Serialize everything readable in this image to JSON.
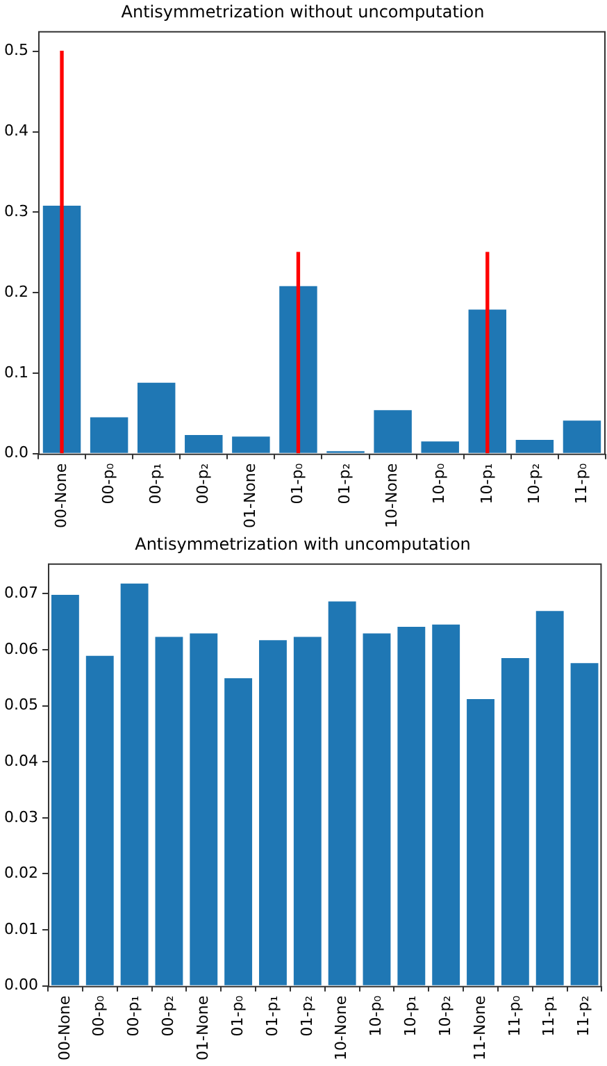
{
  "chart_data": [
    {
      "type": "bar",
      "title": "Antisymmetrization without uncomputation",
      "categories": [
        "00-None",
        "00-p₀",
        "00-p₁",
        "00-p₂",
        "01-None",
        "01-p₀",
        "01-p₂",
        "10-None",
        "10-p₀",
        "10-p₁",
        "10-p₂",
        "11-p₀"
      ],
      "series": [
        {
          "color": "#1f77b4",
          "values": [
            0.308,
            0.045,
            0.088,
            0.023,
            0.021,
            0.208,
            0.003,
            0.054,
            0.015,
            0.179,
            0.017,
            0.041
          ]
        },
        {
          "color": "#ff0000",
          "values": [
            0.5,
            null,
            null,
            null,
            null,
            0.25,
            null,
            null,
            null,
            0.25,
            null,
            null
          ]
        }
      ],
      "ylim": [
        0,
        0.525
      ],
      "yticks": [
        {
          "value": 0,
          "label": "0.0"
        },
        0.1,
        0.2,
        0.3,
        0.4,
        0.5
      ],
      "grid": false,
      "legend": false
    },
    {
      "type": "bar",
      "title": "Antisymmetrization with uncomputation",
      "categories": [
        "00-None",
        "00-p₀",
        "00-p₁",
        "00-p₂",
        "01-None",
        "01-p₀",
        "01-p₁",
        "01-p₂",
        "10-None",
        "10-p₀",
        "10-p₁",
        "10-p₂",
        "11-None",
        "11-p₀",
        "11-p₁",
        "11-p₂"
      ],
      "series": [
        {
          "color": "#1f77b4",
          "values": [
            0.0698,
            0.0589,
            0.0718,
            0.0623,
            0.0629,
            0.0549,
            0.0617,
            0.0623,
            0.0686,
            0.0629,
            0.0641,
            0.0645,
            0.0512,
            0.0585,
            0.0669,
            0.0576
          ]
        }
      ],
      "ylim": [
        0,
        0.0754
      ],
      "yticks": [
        {
          "value": 0,
          "label": "0.00"
        },
        0.01,
        0.02,
        0.03,
        0.04,
        0.05,
        0.06,
        0.07
      ],
      "grid": false,
      "legend": false
    }
  ]
}
